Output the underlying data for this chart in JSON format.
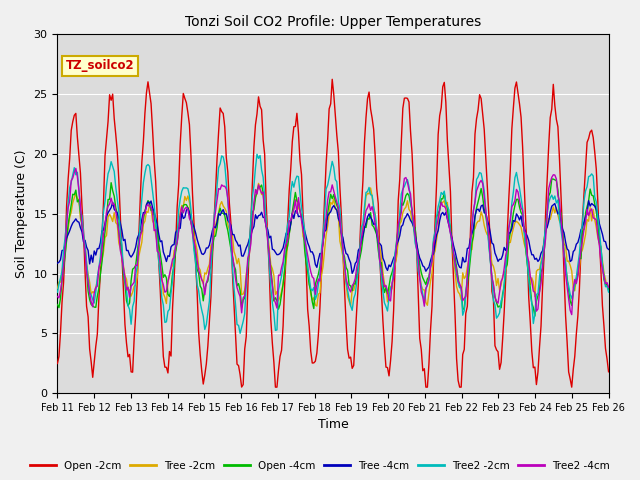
{
  "title": "Tonzi Soil CO2 Profile: Upper Temperatures",
  "xlabel": "Time",
  "ylabel": "Soil Temperature (C)",
  "ylim": [
    0,
    30
  ],
  "background_color": "#f0f0f0",
  "plot_bg_color": "#dcdcdc",
  "watermark_text": "TZ_soilco2",
  "xtick_labels": [
    "Feb 11",
    "Feb 12",
    "Feb 13",
    "Feb 14",
    "Feb 15",
    "Feb 16",
    "Feb 17",
    "Feb 18",
    "Feb 19",
    "Feb 20",
    "Feb 21",
    "Feb 22",
    "Feb 23",
    "Feb 24",
    "Feb 25",
    "Feb 26"
  ],
  "series": {
    "Open -2cm": {
      "color": "#dd0000"
    },
    "Tree -2cm": {
      "color": "#ddaa00"
    },
    "Open -4cm": {
      "color": "#00bb00"
    },
    "Tree -4cm": {
      "color": "#0000bb"
    },
    "Tree2 -2cm": {
      "color": "#00bbbb"
    },
    "Tree2 -4cm": {
      "color": "#bb00bb"
    }
  },
  "legend_order": [
    "Open -2cm",
    "Tree -2cm",
    "Open -4cm",
    "Tree -4cm",
    "Tree2 -2cm",
    "Tree2 -4cm"
  ]
}
